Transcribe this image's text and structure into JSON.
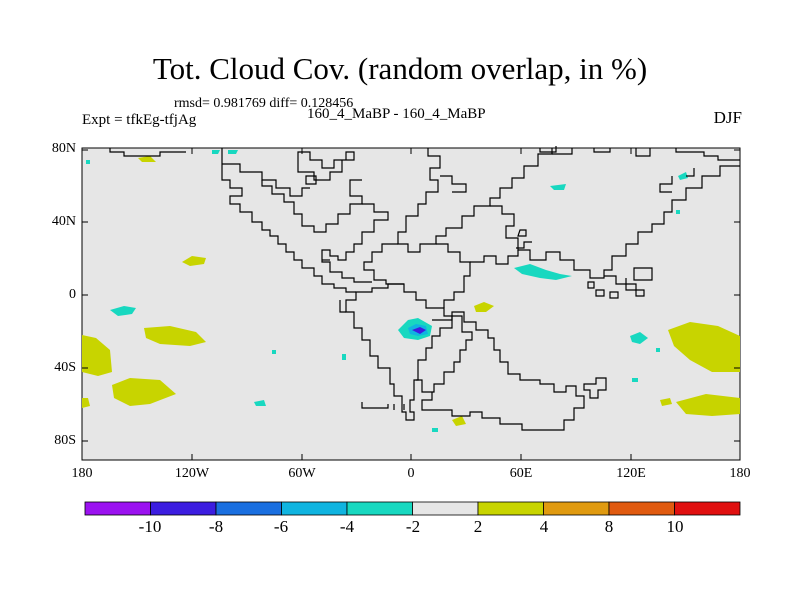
{
  "title": "Tot. Cloud Cov. (random overlap, in %)",
  "stats": "rmsd= 0.981769 diff= 0.128456",
  "experiment": "Expt = tfkEg-tfjAg",
  "cases": "160_4_MaBP - 160_4_MaBP",
  "season": "DJF",
  "lat_ticks": [
    "80N",
    "40N",
    "0",
    "40S",
    "80S"
  ],
  "lon_ticks": [
    "180",
    "120W",
    "60W",
    "0",
    "60E",
    "120E",
    "180"
  ],
  "colorbar": {
    "labels": [
      "-10",
      "-8",
      "-6",
      "-4",
      "-2",
      "2",
      "4",
      "8",
      "10"
    ],
    "colors": [
      "#9b12f0",
      "#3c1de0",
      "#1a6fe0",
      "#10b4e0",
      "#18d8c0",
      "#e6e6e6",
      "#c8d400",
      "#e09a10",
      "#e05a10",
      "#e01010"
    ]
  },
  "colors": {
    "background": "#e6e6e6",
    "coast": "#000000"
  }
}
